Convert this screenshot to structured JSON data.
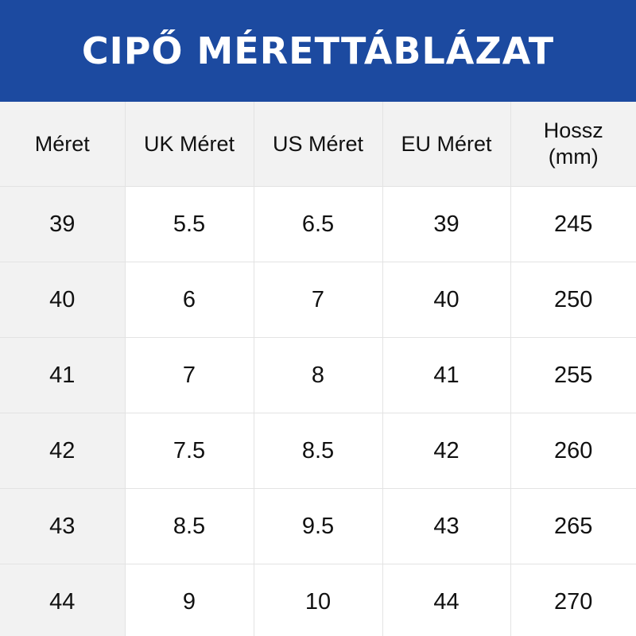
{
  "banner": {
    "title": "CIPŐ MÉRETTÁBLÁZAT"
  },
  "colors": {
    "banner_background": "#1c4aa0",
    "banner_text": "#ffffff",
    "header_background": "#f2f2f2",
    "first_column_background": "#f2f2f2",
    "grid_line": "#e3e3e3"
  },
  "table": {
    "headers": [
      {
        "line1": "Méret",
        "line2": ""
      },
      {
        "line1": "UK Méret",
        "line2": ""
      },
      {
        "line1": "US Méret",
        "line2": ""
      },
      {
        "line1": "EU Méret",
        "line2": ""
      },
      {
        "line1": "Hossz",
        "line2": "(mm)"
      }
    ],
    "rows": [
      [
        "39",
        "5.5",
        "6.5",
        "39",
        "245"
      ],
      [
        "40",
        "6",
        "7",
        "40",
        "250"
      ],
      [
        "41",
        "7",
        "8",
        "41",
        "255"
      ],
      [
        "42",
        "7.5",
        "8.5",
        "42",
        "260"
      ],
      [
        "43",
        "8.5",
        "9.5",
        "43",
        "265"
      ],
      [
        "44",
        "9",
        "10",
        "44",
        "270"
      ]
    ]
  }
}
